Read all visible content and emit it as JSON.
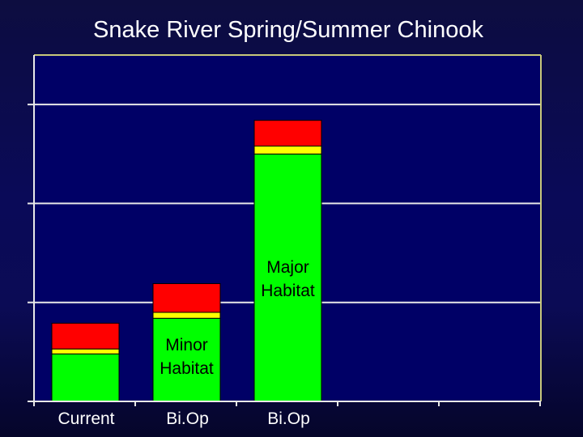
{
  "colors": {
    "background": "#0a0a50",
    "plot_area": "#000066",
    "gridline": "#e8e8e8",
    "axis": "#e8e8e8",
    "frame": "#c8c87a",
    "segment_base": "#00ff00",
    "segment_middle": "#ffff00",
    "segment_top": "#ff0000",
    "segment_outline": "#000000"
  },
  "chart_data": {
    "type": "bar",
    "stacked": true,
    "title": "Snake River Spring/Summer Chinook",
    "xlabel": "",
    "ylabel": "",
    "ylim": [
      0,
      3.5
    ],
    "y_gridlines": [
      1,
      2,
      3
    ],
    "grid": true,
    "legend": "none",
    "categories": [
      "Current",
      "Bi.Op",
      "Bi.Op"
    ],
    "series": [
      {
        "values": [
          0.48,
          0.84,
          2.5
        ],
        "color": "#00ff00"
      },
      {
        "values": [
          0.05,
          0.06,
          0.08
        ],
        "color": "#ffff00"
      },
      {
        "values": [
          0.26,
          0.29,
          0.26
        ],
        "color": "#ff0000"
      }
    ],
    "annotations": [
      {
        "category_index": 1,
        "lines": [
          "Minor",
          "Habitat"
        ]
      },
      {
        "category_index": 2,
        "lines": [
          "Major",
          "Habitat"
        ]
      }
    ]
  }
}
